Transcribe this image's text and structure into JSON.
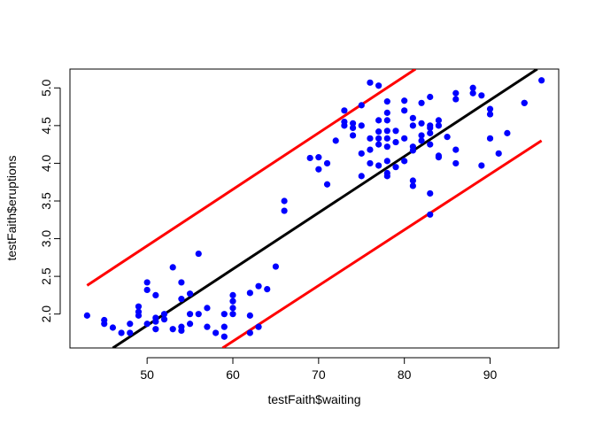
{
  "chart_data": {
    "type": "scatter",
    "title": "",
    "xlabel": "testFaith$waiting",
    "ylabel": "testFaith$eruptions",
    "xlim": [
      41,
      98
    ],
    "ylim": [
      1.55,
      5.25
    ],
    "x_ticks": [
      50,
      60,
      70,
      80,
      90
    ],
    "x_tick_labels": [
      "50",
      "60",
      "70",
      "80",
      "90"
    ],
    "y_ticks": [
      2.0,
      2.5,
      3.0,
      3.5,
      4.0,
      4.5,
      5.0
    ],
    "y_tick_labels": [
      "2.0",
      "2.5",
      "3.0",
      "3.5",
      "4.0",
      "4.5",
      "5.0"
    ],
    "grid": false,
    "legend": "none",
    "point_color": "#0000ff",
    "points": [
      {
        "x": 43,
        "y": 1.98
      },
      {
        "x": 45,
        "y": 1.92
      },
      {
        "x": 45,
        "y": 1.87
      },
      {
        "x": 46,
        "y": 1.82
      },
      {
        "x": 47,
        "y": 1.75
      },
      {
        "x": 48,
        "y": 1.87
      },
      {
        "x": 48,
        "y": 1.75
      },
      {
        "x": 49,
        "y": 1.98
      },
      {
        "x": 49,
        "y": 2.03
      },
      {
        "x": 49,
        "y": 2.1
      },
      {
        "x": 50,
        "y": 2.42
      },
      {
        "x": 50,
        "y": 2.32
      },
      {
        "x": 50,
        "y": 1.87
      },
      {
        "x": 51,
        "y": 2.25
      },
      {
        "x": 51,
        "y": 1.95
      },
      {
        "x": 51,
        "y": 1.9
      },
      {
        "x": 51,
        "y": 1.8
      },
      {
        "x": 52,
        "y": 2.0
      },
      {
        "x": 52,
        "y": 1.93
      },
      {
        "x": 53,
        "y": 2.62
      },
      {
        "x": 53,
        "y": 1.8
      },
      {
        "x": 54,
        "y": 2.42
      },
      {
        "x": 54,
        "y": 2.2
      },
      {
        "x": 54,
        "y": 1.83
      },
      {
        "x": 54,
        "y": 1.78
      },
      {
        "x": 55,
        "y": 2.27
      },
      {
        "x": 55,
        "y": 2.0
      },
      {
        "x": 55,
        "y": 1.87
      },
      {
        "x": 56,
        "y": 2.8
      },
      {
        "x": 56,
        "y": 2.0
      },
      {
        "x": 57,
        "y": 2.08
      },
      {
        "x": 57,
        "y": 1.83
      },
      {
        "x": 58,
        "y": 1.75
      },
      {
        "x": 59,
        "y": 2.0
      },
      {
        "x": 59,
        "y": 1.83
      },
      {
        "x": 59,
        "y": 1.7
      },
      {
        "x": 60,
        "y": 2.25
      },
      {
        "x": 60,
        "y": 2.17
      },
      {
        "x": 60,
        "y": 2.08
      },
      {
        "x": 60,
        "y": 2.0
      },
      {
        "x": 62,
        "y": 2.28
      },
      {
        "x": 62,
        "y": 1.98
      },
      {
        "x": 62,
        "y": 1.75
      },
      {
        "x": 63,
        "y": 2.37
      },
      {
        "x": 63,
        "y": 1.83
      },
      {
        "x": 64,
        "y": 2.33
      },
      {
        "x": 65,
        "y": 2.63
      },
      {
        "x": 66,
        "y": 3.5
      },
      {
        "x": 66,
        "y": 3.37
      },
      {
        "x": 69,
        "y": 4.07
      },
      {
        "x": 70,
        "y": 4.08
      },
      {
        "x": 70,
        "y": 3.92
      },
      {
        "x": 71,
        "y": 4.0
      },
      {
        "x": 71,
        "y": 3.72
      },
      {
        "x": 72,
        "y": 4.3
      },
      {
        "x": 73,
        "y": 4.7
      },
      {
        "x": 73,
        "y": 4.55
      },
      {
        "x": 73,
        "y": 4.5
      },
      {
        "x": 74,
        "y": 4.53
      },
      {
        "x": 74,
        "y": 4.47
      },
      {
        "x": 74,
        "y": 4.37
      },
      {
        "x": 75,
        "y": 4.77
      },
      {
        "x": 75,
        "y": 4.5
      },
      {
        "x": 75,
        "y": 4.13
      },
      {
        "x": 75,
        "y": 3.83
      },
      {
        "x": 76,
        "y": 5.07
      },
      {
        "x": 76,
        "y": 4.33
      },
      {
        "x": 76,
        "y": 4.18
      },
      {
        "x": 76,
        "y": 4.0
      },
      {
        "x": 77,
        "y": 5.03
      },
      {
        "x": 77,
        "y": 4.57
      },
      {
        "x": 77,
        "y": 4.42
      },
      {
        "x": 77,
        "y": 4.33
      },
      {
        "x": 77,
        "y": 4.25
      },
      {
        "x": 77,
        "y": 3.97
      },
      {
        "x": 78,
        "y": 4.82
      },
      {
        "x": 78,
        "y": 4.67
      },
      {
        "x": 78,
        "y": 4.57
      },
      {
        "x": 78,
        "y": 4.43
      },
      {
        "x": 78,
        "y": 4.33
      },
      {
        "x": 78,
        "y": 4.22
      },
      {
        "x": 78,
        "y": 4.03
      },
      {
        "x": 78,
        "y": 3.87
      },
      {
        "x": 78,
        "y": 3.83
      },
      {
        "x": 79,
        "y": 4.43
      },
      {
        "x": 79,
        "y": 4.28
      },
      {
        "x": 79,
        "y": 3.95
      },
      {
        "x": 80,
        "y": 4.83
      },
      {
        "x": 80,
        "y": 4.7
      },
      {
        "x": 80,
        "y": 4.33
      },
      {
        "x": 80,
        "y": 4.03
      },
      {
        "x": 81,
        "y": 4.6
      },
      {
        "x": 81,
        "y": 4.5
      },
      {
        "x": 81,
        "y": 4.22
      },
      {
        "x": 81,
        "y": 4.17
      },
      {
        "x": 81,
        "y": 3.77
      },
      {
        "x": 81,
        "y": 3.7
      },
      {
        "x": 82,
        "y": 4.8
      },
      {
        "x": 82,
        "y": 4.53
      },
      {
        "x": 82,
        "y": 4.37
      },
      {
        "x": 82,
        "y": 4.3
      },
      {
        "x": 83,
        "y": 4.88
      },
      {
        "x": 83,
        "y": 4.5
      },
      {
        "x": 83,
        "y": 4.47
      },
      {
        "x": 83,
        "y": 4.4
      },
      {
        "x": 83,
        "y": 4.25
      },
      {
        "x": 83,
        "y": 3.6
      },
      {
        "x": 83,
        "y": 3.32
      },
      {
        "x": 84,
        "y": 4.57
      },
      {
        "x": 84,
        "y": 4.5
      },
      {
        "x": 84,
        "y": 4.1
      },
      {
        "x": 84,
        "y": 4.08
      },
      {
        "x": 85,
        "y": 4.35
      },
      {
        "x": 86,
        "y": 4.93
      },
      {
        "x": 86,
        "y": 4.85
      },
      {
        "x": 86,
        "y": 4.18
      },
      {
        "x": 86,
        "y": 4.0
      },
      {
        "x": 88,
        "y": 5.0
      },
      {
        "x": 88,
        "y": 4.93
      },
      {
        "x": 89,
        "y": 4.9
      },
      {
        "x": 89,
        "y": 3.97
      },
      {
        "x": 90,
        "y": 4.72
      },
      {
        "x": 90,
        "y": 4.65
      },
      {
        "x": 90,
        "y": 4.33
      },
      {
        "x": 91,
        "y": 4.13
      },
      {
        "x": 92,
        "y": 4.4
      },
      {
        "x": 94,
        "y": 4.8
      },
      {
        "x": 94,
        "y": 4.8
      },
      {
        "x": 96,
        "y": 5.1
      }
    ],
    "lines": [
      {
        "name": "fit",
        "color": "#000000",
        "x": [
          46.0,
          95.5
        ],
        "y": [
          1.55,
          5.25
        ]
      },
      {
        "name": "upper-bound",
        "color": "#ff0000",
        "x": [
          43.0,
          81.3
        ],
        "y": [
          2.38,
          5.25
        ]
      },
      {
        "name": "lower-bound",
        "color": "#ff0000",
        "x": [
          58.8,
          96.0
        ],
        "y": [
          1.55,
          4.3
        ]
      }
    ]
  }
}
